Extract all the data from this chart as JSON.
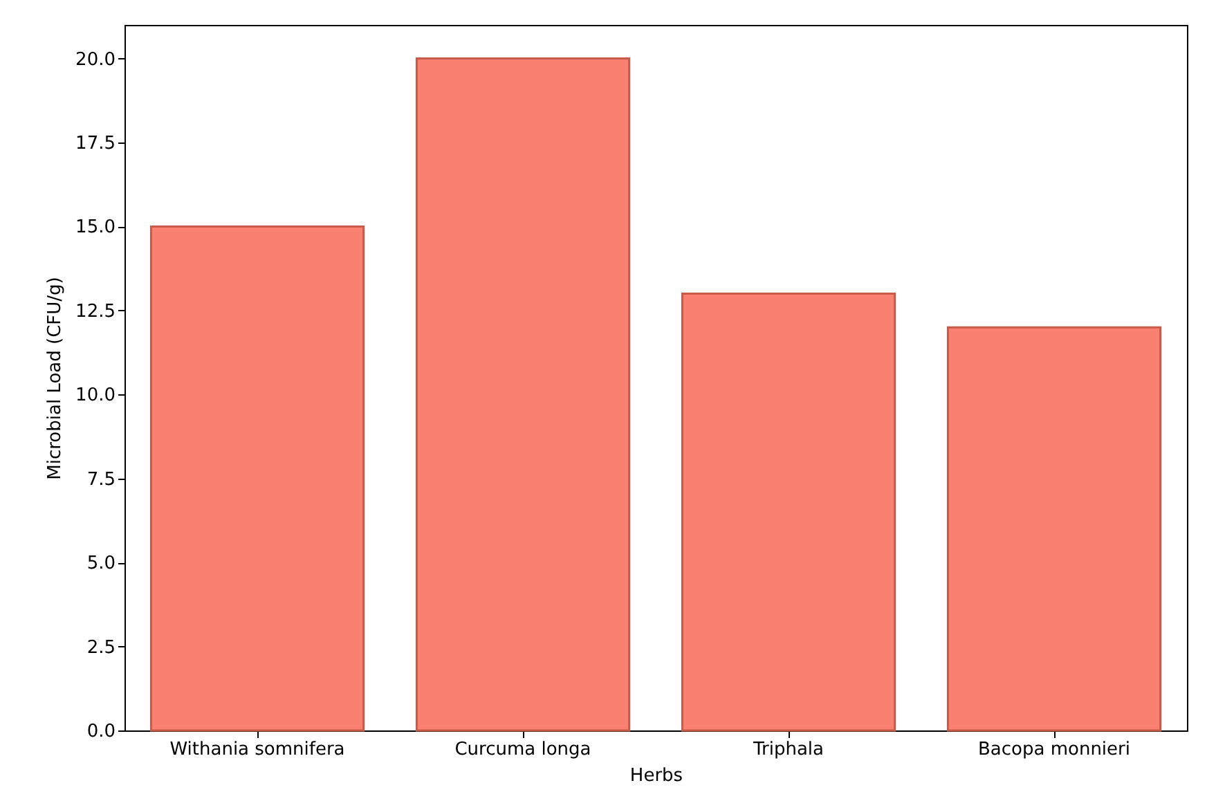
{
  "chart_data": {
    "type": "bar",
    "xlabel": "Herbs",
    "ylabel": "Microbial Load (CFU/g)",
    "categories": [
      "Withania somnifera",
      "Curcuma longa",
      "Triphala",
      "Bacopa monnieri"
    ],
    "values": [
      15,
      20,
      13,
      12
    ],
    "color": "#fa8072",
    "ylim": [
      0,
      21
    ],
    "yticks": [
      {
        "value": 0,
        "label": "0.0"
      },
      {
        "value": 2.5,
        "label": "2.5"
      },
      {
        "value": 5,
        "label": "5.0"
      },
      {
        "value": 7.5,
        "label": "7.5"
      },
      {
        "value": 10,
        "label": "10.0"
      },
      {
        "value": 12.5,
        "label": "12.5"
      },
      {
        "value": 15,
        "label": "15.0"
      },
      {
        "value": 17.5,
        "label": "17.5"
      },
      {
        "value": 20,
        "label": "20.0"
      }
    ],
    "grid": false,
    "legend": false
  }
}
